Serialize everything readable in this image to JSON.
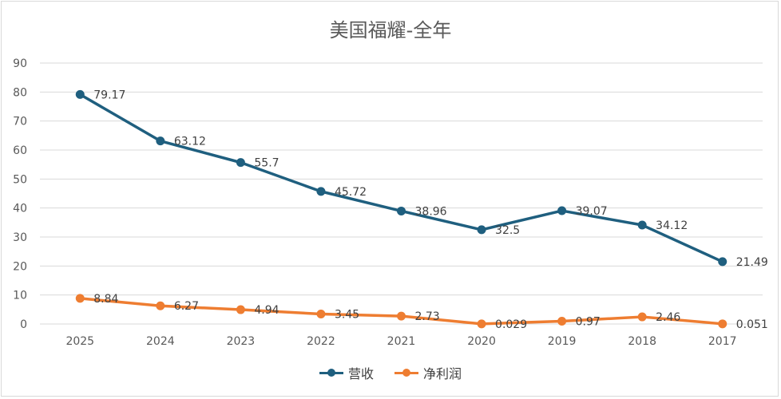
{
  "chart_data": {
    "type": "line",
    "title": "美国福耀-全年",
    "categories": [
      "2025",
      "2024",
      "2023",
      "2022",
      "2021",
      "2020",
      "2019",
      "2018",
      "2017"
    ],
    "ylim": [
      0,
      90
    ],
    "yticks": [
      0,
      10,
      20,
      30,
      40,
      50,
      60,
      70,
      80,
      90
    ],
    "grid": true,
    "legend_position": "bottom",
    "series": [
      {
        "name": "营收",
        "color": "#1f5f7f",
        "values": [
          79.17,
          63.12,
          55.7,
          45.72,
          38.96,
          32.5,
          39.07,
          34.12,
          21.49
        ],
        "labels": [
          "79.17",
          "63.12",
          "55.7",
          "45.72",
          "38.96",
          "32.5",
          "39.07",
          "34.12",
          "21.49"
        ]
      },
      {
        "name": "净利润",
        "color": "#ee7d31",
        "values": [
          8.84,
          6.27,
          4.94,
          3.45,
          2.73,
          0.029,
          0.97,
          2.46,
          0.051
        ],
        "labels": [
          "8.84",
          "6.27",
          "4.94",
          "3.45",
          "2.73",
          "0.029",
          "0.97",
          "2.46",
          "0.051"
        ]
      }
    ]
  }
}
